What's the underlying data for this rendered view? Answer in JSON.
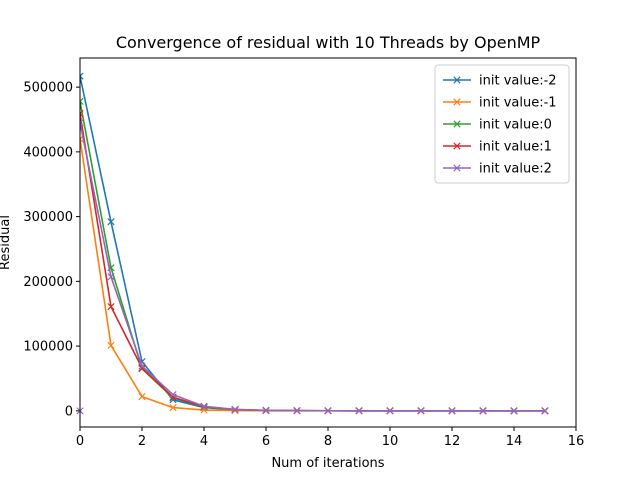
{
  "chart_data": {
    "type": "line",
    "title": "Convergence of residual with 10 Threads by OpenMP",
    "xlabel": "Num of iterations",
    "ylabel": "Residual",
    "xlim": [
      0,
      16
    ],
    "ylim": [
      -25000,
      545000
    ],
    "xticks": [
      0,
      2,
      4,
      6,
      8,
      10,
      12,
      14,
      16
    ],
    "yticks": [
      0,
      100000,
      200000,
      300000,
      400000,
      500000
    ],
    "grid": false,
    "legend_position": "top-right",
    "marker": "x",
    "x": [
      0,
      1,
      2,
      3,
      4,
      5,
      6,
      7,
      8,
      9,
      10,
      11,
      12,
      13,
      14,
      15
    ],
    "series": [
      {
        "name": "init value:-2",
        "color": "#1f77b4",
        "values": [
          517000,
          292000,
          76000,
          17000,
          5000,
          1500,
          500,
          200,
          100,
          50,
          20,
          10,
          5,
          2,
          1,
          0
        ]
      },
      {
        "name": "init value:-1",
        "color": "#ff7f0e",
        "values": [
          420000,
          101000,
          22000,
          5000,
          1200,
          400,
          150,
          60,
          25,
          10,
          5,
          2,
          1,
          0,
          0,
          0
        ]
      },
      {
        "name": "init value:0",
        "color": "#2ca02c",
        "values": [
          478000,
          221000,
          65000,
          20000,
          6000,
          1800,
          600,
          200,
          80,
          30,
          10,
          5,
          2,
          1,
          0,
          0
        ]
      },
      {
        "name": "init value:1",
        "color": "#d62728",
        "values": [
          459000,
          161000,
          66000,
          21000,
          6500,
          2000,
          650,
          220,
          80,
          30,
          10,
          5,
          2,
          1,
          0,
          0
        ]
      },
      {
        "name": "init value:2",
        "color": "#9467bd",
        "values": [
          445000,
          207000,
          69000,
          25000,
          7000,
          2100,
          700,
          230,
          90,
          35,
          12,
          5,
          2,
          1,
          0,
          0
        ]
      }
    ],
    "extra_points": [
      {
        "series_index": 4,
        "x": 0,
        "y": 0
      }
    ]
  }
}
